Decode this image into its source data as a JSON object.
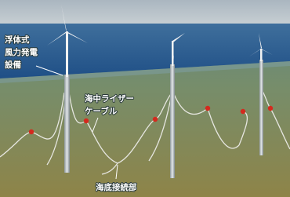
{
  "labels": {
    "floating_facility": [
      "浮体式",
      "風力発電",
      "設備"
    ],
    "riser_cable": [
      "海中ライザー",
      "ケーブル"
    ],
    "seabed_joint": [
      "海底接続部"
    ]
  }
}
